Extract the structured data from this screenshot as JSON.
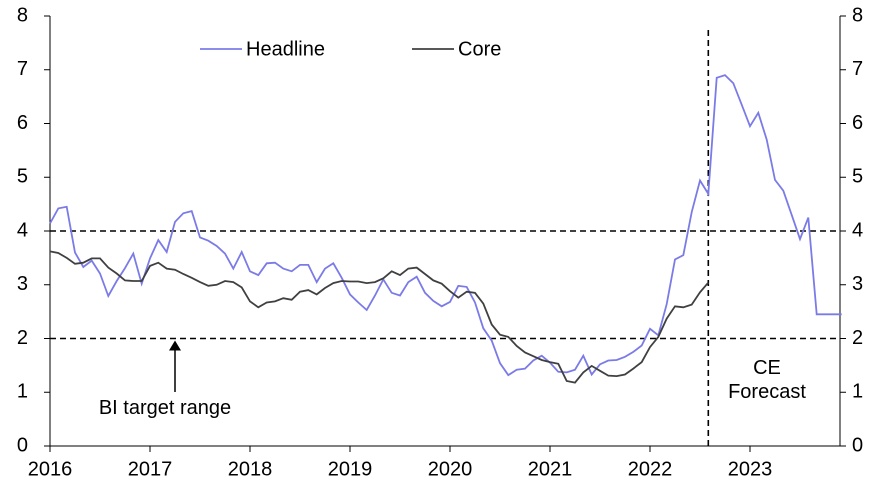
{
  "chart_data": {
    "type": "line",
    "x": [
      2016,
      2016.083,
      2016.167,
      2016.25,
      2016.333,
      2016.417,
      2016.5,
      2016.583,
      2016.667,
      2016.75,
      2016.833,
      2016.917,
      2017,
      2017.083,
      2017.167,
      2017.25,
      2017.333,
      2017.417,
      2017.5,
      2017.583,
      2017.667,
      2017.75,
      2017.833,
      2017.917,
      2018,
      2018.083,
      2018.167,
      2018.25,
      2018.333,
      2018.417,
      2018.5,
      2018.583,
      2018.667,
      2018.75,
      2018.833,
      2018.917,
      2019,
      2019.083,
      2019.167,
      2019.25,
      2019.333,
      2019.417,
      2019.5,
      2019.583,
      2019.667,
      2019.75,
      2019.833,
      2019.917,
      2020,
      2020.083,
      2020.167,
      2020.25,
      2020.333,
      2020.417,
      2020.5,
      2020.583,
      2020.667,
      2020.75,
      2020.833,
      2020.917,
      2021,
      2021.083,
      2021.167,
      2021.25,
      2021.333,
      2021.417,
      2021.5,
      2021.583,
      2021.667,
      2021.75,
      2021.833,
      2021.917,
      2022,
      2022.083,
      2022.167,
      2022.25,
      2022.333,
      2022.417,
      2022.5,
      2022.583,
      2022.667,
      2022.75,
      2022.833,
      2022.917,
      2023,
      2023.083,
      2023.167,
      2023.25,
      2023.333,
      2023.417,
      2023.5,
      2023.583,
      2023.667,
      2023.75,
      2023.833,
      2023.917
    ],
    "series": [
      {
        "name": "Headline",
        "color": "#7b7be8",
        "values": [
          4.14,
          4.42,
          4.45,
          3.6,
          3.33,
          3.45,
          3.21,
          2.79,
          3.07,
          3.31,
          3.58,
          3.02,
          3.49,
          3.83,
          3.61,
          4.17,
          4.33,
          4.37,
          3.88,
          3.82,
          3.72,
          3.58,
          3.3,
          3.61,
          3.25,
          3.18,
          3.4,
          3.41,
          3.3,
          3.25,
          3.37,
          3.37,
          3.05,
          3.3,
          3.4,
          3.13,
          2.82,
          2.67,
          2.53,
          2.8,
          3.1,
          2.85,
          2.8,
          3.05,
          3.15,
          2.85,
          2.7,
          2.6,
          2.68,
          2.98,
          2.96,
          2.67,
          2.19,
          1.96,
          1.54,
          1.32,
          1.42,
          1.44,
          1.59,
          1.68,
          1.55,
          1.38,
          1.37,
          1.42,
          1.68,
          1.33,
          1.52,
          1.59,
          1.6,
          1.66,
          1.75,
          1.87,
          2.18,
          2.06,
          2.64,
          3.47,
          3.55,
          4.35,
          4.94,
          4.69,
          6.85,
          6.9,
          6.75,
          6.35,
          5.95,
          6.2,
          5.7,
          4.95,
          4.75,
          4.3,
          3.85,
          4.25,
          2.45,
          2.45,
          2.45,
          2.45
        ]
      },
      {
        "name": "Core",
        "color": "#404040",
        "values": [
          3.62,
          3.59,
          3.5,
          3.39,
          3.41,
          3.49,
          3.49,
          3.32,
          3.21,
          3.08,
          3.07,
          3.07,
          3.35,
          3.41,
          3.3,
          3.28,
          3.2,
          3.13,
          3.05,
          2.98,
          3.0,
          3.07,
          3.05,
          2.95,
          2.69,
          2.58,
          2.67,
          2.69,
          2.75,
          2.72,
          2.87,
          2.9,
          2.82,
          2.94,
          3.03,
          3.07,
          3.06,
          3.06,
          3.03,
          3.05,
          3.12,
          3.25,
          3.18,
          3.3,
          3.32,
          3.2,
          3.08,
          3.02,
          2.88,
          2.76,
          2.87,
          2.85,
          2.65,
          2.26,
          2.07,
          2.03,
          1.86,
          1.74,
          1.67,
          1.6,
          1.56,
          1.53,
          1.21,
          1.18,
          1.37,
          1.49,
          1.4,
          1.31,
          1.3,
          1.33,
          1.44,
          1.56,
          1.84,
          2.03,
          2.37,
          2.6,
          2.58,
          2.63,
          2.86,
          3.04,
          null,
          null,
          null,
          null,
          null,
          null,
          null,
          null,
          null,
          null,
          null,
          null,
          null,
          null,
          null,
          null
        ]
      }
    ],
    "xlim": [
      2016,
      2023.9
    ],
    "xticks": [
      2016,
      2017,
      2018,
      2019,
      2020,
      2021,
      2022,
      2023
    ],
    "ylim": [
      0,
      8
    ],
    "yticks": [
      0,
      1,
      2,
      3,
      4,
      5,
      6,
      7,
      8
    ],
    "y2lim": [
      0,
      8
    ],
    "y2ticks": [
      0,
      1,
      2,
      3,
      4,
      5,
      6,
      7,
      8
    ],
    "target_range": [
      2,
      4
    ],
    "forecast_start": 2022.583,
    "annotations": [
      "BI target range",
      "CE Forecast"
    ]
  }
}
